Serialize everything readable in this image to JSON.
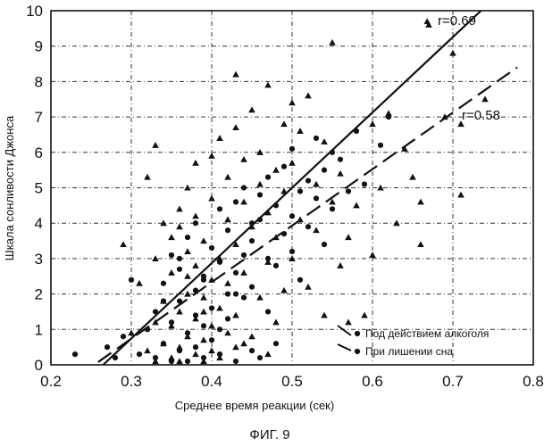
{
  "figure": {
    "caption": "ФИГ. 9"
  },
  "chart_data": {
    "type": "scatter",
    "title": "",
    "xlabel": "Среднее время реакции (сек)",
    "ylabel": "Шкала сонливости Джонса",
    "xlim": [
      0.2,
      0.8
    ],
    "ylim": [
      0,
      10
    ],
    "xticks": [
      "0.2",
      "0.3",
      "0.4",
      "0.5",
      "0.6",
      "0.7",
      "0.8"
    ],
    "yticks": [
      "0",
      "1",
      "2",
      "3",
      "4",
      "5",
      "6",
      "7",
      "8",
      "9",
      "10"
    ],
    "grid": true,
    "legend_position": "bottom-right",
    "series": [
      {
        "name": "Под действием алкоголя",
        "marker": "circle",
        "line_style": "solid",
        "fit_label": "r=0.69",
        "fit_line": {
          "x": [
            0.265,
            0.735
          ],
          "y": [
            0.0,
            10.0
          ]
        },
        "points": [
          [
            0.23,
            0.3
          ],
          [
            0.27,
            0.5
          ],
          [
            0.28,
            0.2
          ],
          [
            0.29,
            0.8
          ],
          [
            0.3,
            2.4
          ],
          [
            0.31,
            0.3
          ],
          [
            0.32,
            1.0
          ],
          [
            0.33,
            0.2
          ],
          [
            0.33,
            1.5
          ],
          [
            0.34,
            0.6
          ],
          [
            0.34,
            2.3
          ],
          [
            0.35,
            0.1
          ],
          [
            0.35,
            1.2
          ],
          [
            0.35,
            3.1
          ],
          [
            0.36,
            0.4
          ],
          [
            0.36,
            1.8
          ],
          [
            0.36,
            2.7
          ],
          [
            0.37,
            0.9
          ],
          [
            0.37,
            0.1
          ],
          [
            0.37,
            3.6
          ],
          [
            0.38,
            1.4
          ],
          [
            0.38,
            2.1
          ],
          [
            0.38,
            0.5
          ],
          [
            0.38,
            4.0
          ],
          [
            0.39,
            0.2
          ],
          [
            0.39,
            2.5
          ],
          [
            0.39,
            1.1
          ],
          [
            0.4,
            3.3
          ],
          [
            0.4,
            0.7
          ],
          [
            0.4,
            1.6
          ],
          [
            0.41,
            4.4
          ],
          [
            0.41,
            2.9
          ],
          [
            0.41,
            0.3
          ],
          [
            0.42,
            2.0
          ],
          [
            0.42,
            1.3
          ],
          [
            0.42,
            3.8
          ],
          [
            0.43,
            0.1
          ],
          [
            0.43,
            4.6
          ],
          [
            0.43,
            2.6
          ],
          [
            0.44,
            3.1
          ],
          [
            0.44,
            1.9
          ],
          [
            0.44,
            5.0
          ],
          [
            0.45,
            0.4
          ],
          [
            0.45,
            3.5
          ],
          [
            0.45,
            2.2
          ],
          [
            0.46,
            4.1
          ],
          [
            0.46,
            4.8
          ],
          [
            0.46,
            0.2
          ],
          [
            0.47,
            3.0
          ],
          [
            0.47,
            5.3
          ],
          [
            0.47,
            1.5
          ],
          [
            0.48,
            4.5
          ],
          [
            0.48,
            2.8
          ],
          [
            0.48,
            0.6
          ],
          [
            0.49,
            3.7
          ],
          [
            0.49,
            5.6
          ],
          [
            0.5,
            4.2
          ],
          [
            0.5,
            3.2
          ],
          [
            0.5,
            6.1
          ],
          [
            0.51,
            4.9
          ],
          [
            0.51,
            2.4
          ],
          [
            0.52,
            5.2
          ],
          [
            0.52,
            3.9
          ],
          [
            0.53,
            4.7
          ],
          [
            0.53,
            6.4
          ],
          [
            0.54,
            5.5
          ],
          [
            0.54,
            3.4
          ],
          [
            0.55,
            4.4
          ],
          [
            0.55,
            6.0
          ],
          [
            0.56,
            5.8
          ],
          [
            0.57,
            4.9
          ],
          [
            0.58,
            6.6
          ],
          [
            0.59,
            5.1
          ],
          [
            0.61,
            6.2
          ],
          [
            0.62,
            7.0
          ],
          [
            0.43,
            2.0
          ],
          [
            0.39,
            2.4
          ],
          [
            0.36,
            3.0
          ],
          [
            0.45,
            4.0
          ],
          [
            0.34,
            1.8
          ],
          [
            0.41,
            1.0
          ]
        ]
      },
      {
        "name": "При лишении сна",
        "marker": "triangle",
        "line_style": "dashed",
        "fit_label": "r=0.58",
        "fit_line": {
          "x": [
            0.235,
            0.78
          ],
          "y": [
            -0.3,
            8.4
          ]
        },
        "points": [
          [
            0.29,
            3.4
          ],
          [
            0.3,
            0.9
          ],
          [
            0.31,
            2.3
          ],
          [
            0.32,
            0.4
          ],
          [
            0.32,
            5.3
          ],
          [
            0.33,
            1.2
          ],
          [
            0.33,
            0.1
          ],
          [
            0.33,
            3.0
          ],
          [
            0.33,
            6.2
          ],
          [
            0.34,
            0.6
          ],
          [
            0.34,
            1.8
          ],
          [
            0.34,
            4.0
          ],
          [
            0.35,
            0.2
          ],
          [
            0.35,
            1.1
          ],
          [
            0.35,
            2.6
          ],
          [
            0.35,
            3.6
          ],
          [
            0.36,
            0.5
          ],
          [
            0.36,
            1.5
          ],
          [
            0.36,
            0.1
          ],
          [
            0.36,
            4.4
          ],
          [
            0.37,
            0.8
          ],
          [
            0.37,
            2.0
          ],
          [
            0.37,
            3.2
          ],
          [
            0.37,
            5.0
          ],
          [
            0.38,
            0.3
          ],
          [
            0.38,
            1.3
          ],
          [
            0.38,
            2.8
          ],
          [
            0.38,
            4.2
          ],
          [
            0.38,
            5.7
          ],
          [
            0.39,
            0.1
          ],
          [
            0.39,
            0.7
          ],
          [
            0.39,
            1.9
          ],
          [
            0.39,
            3.5
          ],
          [
            0.4,
            0.4
          ],
          [
            0.4,
            1.1
          ],
          [
            0.4,
            2.4
          ],
          [
            0.4,
            4.7
          ],
          [
            0.4,
            5.9
          ],
          [
            0.41,
            0.2
          ],
          [
            0.41,
            1.6
          ],
          [
            0.41,
            3.0
          ],
          [
            0.41,
            6.4
          ],
          [
            0.42,
            0.9
          ],
          [
            0.42,
            2.3
          ],
          [
            0.42,
            4.1
          ],
          [
            0.42,
            5.3
          ],
          [
            0.43,
            0.5
          ],
          [
            0.43,
            1.4
          ],
          [
            0.43,
            3.4
          ],
          [
            0.43,
            6.7
          ],
          [
            0.43,
            8.2
          ],
          [
            0.44,
            2.6
          ],
          [
            0.44,
            4.6
          ],
          [
            0.44,
            5.8
          ],
          [
            0.45,
            0.8
          ],
          [
            0.45,
            3.9
          ],
          [
            0.45,
            7.2
          ],
          [
            0.46,
            1.9
          ],
          [
            0.46,
            5.1
          ],
          [
            0.46,
            6.0
          ],
          [
            0.47,
            0.3
          ],
          [
            0.47,
            2.9
          ],
          [
            0.47,
            4.3
          ],
          [
            0.47,
            7.9
          ],
          [
            0.48,
            1.2
          ],
          [
            0.48,
            3.6
          ],
          [
            0.48,
            5.5
          ],
          [
            0.49,
            6.8
          ],
          [
            0.49,
            2.1
          ],
          [
            0.49,
            4.9
          ],
          [
            0.5,
            7.4
          ],
          [
            0.5,
            3.0
          ],
          [
            0.5,
            5.7
          ],
          [
            0.51,
            6.6
          ],
          [
            0.51,
            4.1
          ],
          [
            0.52,
            2.2
          ],
          [
            0.52,
            7.6
          ],
          [
            0.53,
            5.1
          ],
          [
            0.53,
            3.8
          ],
          [
            0.54,
            6.3
          ],
          [
            0.54,
            1.4
          ],
          [
            0.55,
            4.6
          ],
          [
            0.55,
            9.1
          ],
          [
            0.56,
            2.8
          ],
          [
            0.56,
            5.4
          ],
          [
            0.57,
            3.6
          ],
          [
            0.57,
            1.2
          ],
          [
            0.58,
            4.5
          ],
          [
            0.59,
            1.4
          ],
          [
            0.6,
            6.8
          ],
          [
            0.6,
            3.1
          ],
          [
            0.61,
            5.0
          ],
          [
            0.62,
            7.1
          ],
          [
            0.63,
            4.0
          ],
          [
            0.64,
            6.1
          ],
          [
            0.65,
            5.3
          ],
          [
            0.66,
            4.6
          ],
          [
            0.66,
            3.4
          ],
          [
            0.67,
            9.6
          ],
          [
            0.69,
            7.0
          ],
          [
            0.7,
            8.8
          ],
          [
            0.71,
            6.8
          ],
          [
            0.71,
            4.8
          ],
          [
            0.74,
            7.5
          ],
          [
            0.36,
            3.9
          ],
          [
            0.39,
            1.5
          ],
          [
            0.44,
            0.6
          ],
          [
            0.37,
            2.5
          ]
        ]
      }
    ]
  }
}
